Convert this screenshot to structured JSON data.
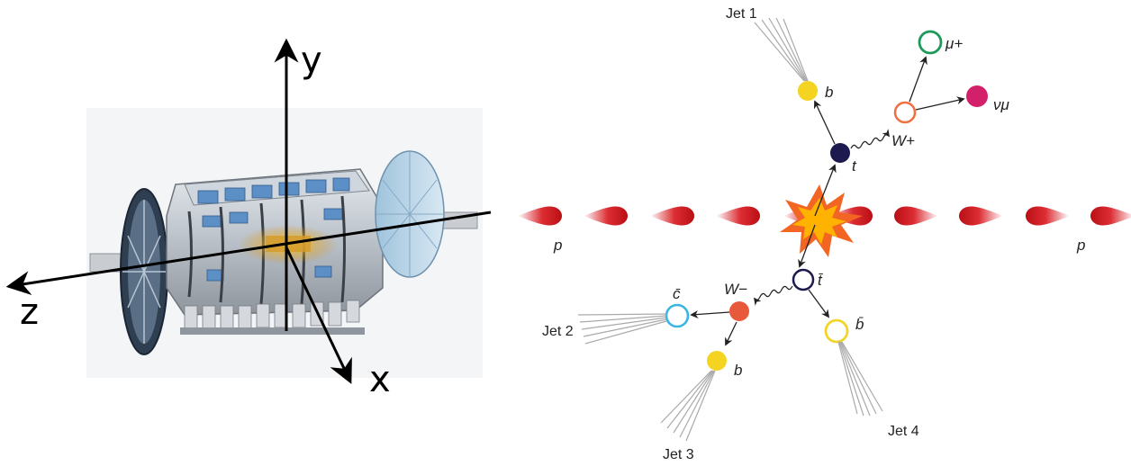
{
  "axes": {
    "y_label": "y",
    "z_label": "z",
    "x_label": "x"
  },
  "event": {
    "beam_left_label": "p",
    "beam_right_label": "p",
    "top_label": "t",
    "antitop_label": "t̄",
    "b_top_label": "b",
    "b_anti_label": "b",
    "bbar_label": "b̄",
    "cbar_label": "c̄",
    "wplus_label": "W+",
    "wminus_label": "W−",
    "mu_label": "μ+",
    "nu_label": "νμ",
    "jets": [
      "Jet 1",
      "Jet 2",
      "Jet 3",
      "Jet 4"
    ]
  },
  "colors": {
    "beam": "#d8161c",
    "top": "#1c1a4f",
    "b_quark": "#f4d321",
    "w_plus_ring": "#ef6f41",
    "w_minus": "#e8593b",
    "muon_ring": "#1d9a5a",
    "neutrino": "#d3206b",
    "cbar_ring": "#39b4e3",
    "bbar_ring": "#f1d52a",
    "explosion": "#f26522"
  }
}
